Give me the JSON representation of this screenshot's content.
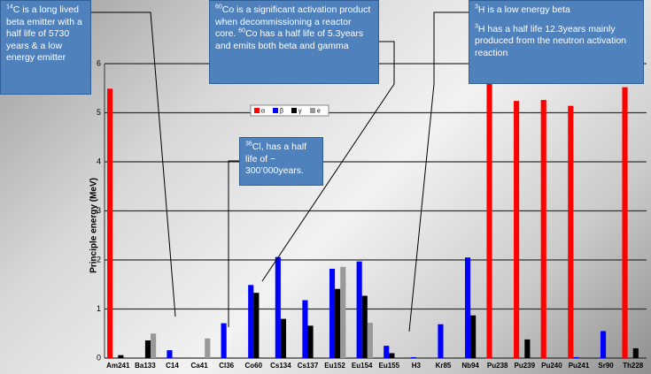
{
  "chart_data": {
    "type": "bar",
    "y_label": "Principle energy (MeV)",
    "categories": [
      "Am241",
      "Ba133",
      "C14",
      "Ca41",
      "Cl36",
      "Co60",
      "Cs134",
      "Cs137",
      "Eu152",
      "Eu154",
      "Eu155",
      "H3",
      "Kr85",
      "Nb94",
      "Pu238",
      "Pu239",
      "Pu240",
      "Pu241",
      "Sr90",
      "Th228"
    ],
    "series": [
      {
        "name": "α",
        "color": "#ff0000",
        "values": [
          5.49,
          null,
          null,
          null,
          null,
          null,
          null,
          null,
          null,
          null,
          null,
          null,
          null,
          null,
          5.59,
          5.24,
          5.26,
          5.14,
          null,
          5.52
        ]
      },
      {
        "name": "β",
        "color": "#0000ff",
        "values": [
          null,
          null,
          0.16,
          null,
          0.71,
          1.49,
          2.06,
          1.18,
          1.82,
          1.97,
          0.25,
          0.019,
          0.69,
          2.05,
          null,
          null,
          null,
          0.02,
          0.55,
          null
        ]
      },
      {
        "name": "γ",
        "color": "#000000",
        "values": [
          0.06,
          0.36,
          null,
          null,
          null,
          1.33,
          0.8,
          0.66,
          1.41,
          1.27,
          0.1,
          null,
          null,
          0.87,
          null,
          0.38,
          null,
          null,
          null,
          0.2
        ]
      },
      {
        "name": "e",
        "color": "#999999",
        "values": [
          null,
          0.5,
          null,
          0.4,
          null,
          null,
          null,
          null,
          1.86,
          0.72,
          null,
          null,
          null,
          null,
          null,
          null,
          null,
          null,
          null,
          null
        ]
      }
    ],
    "ylim": [
      0,
      6
    ],
    "yticks": [
      0,
      1,
      2,
      3,
      4,
      5,
      6
    ]
  },
  "callouts": [
    {
      "paragraphs": [
        [
          {
            "sup": "14",
            "text": "C is a long lived beta emitter with a half life of 5730 years & a low energy emitter"
          }
        ]
      ]
    },
    {
      "paragraphs": [
        [
          {
            "sup": "60",
            "text": "Co is a significant activation product when decommissioning a reactor core. "
          },
          {
            "sup": "60",
            "text": "Co has a half life of 5.3years and emits both beta and gamma"
          }
        ]
      ]
    },
    {
      "paragraphs": [
        [
          {
            "sup": "36",
            "text": "Cl, has a half life of ~ 300’000years."
          }
        ]
      ]
    },
    {
      "paragraphs": [
        [
          {
            "sup": "3",
            "text": "H is a low energy beta"
          }
        ],
        [
          {
            "sup": "3",
            "text": "H has a half life 12.3years mainly produced from the neutron activation reaction"
          }
        ]
      ]
    }
  ]
}
